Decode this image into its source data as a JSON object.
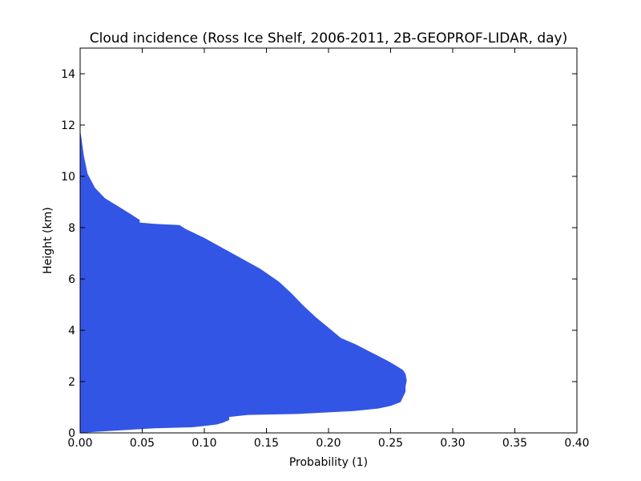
{
  "chart_data": {
    "type": "area",
    "title": "Cloud incidence (Ross Ice Shelf, 2006-2011, 2B-GEOPROF-LIDAR, day)",
    "xlabel": "Probability (1)",
    "ylabel": "Height (km)",
    "xlim": [
      0.0,
      0.4
    ],
    "ylim": [
      0,
      15
    ],
    "xticks": [
      "0.00",
      "0.05",
      "0.10",
      "0.15",
      "0.20",
      "0.25",
      "0.30",
      "0.35",
      "0.40"
    ],
    "yticks": [
      "0",
      "2",
      "4",
      "6",
      "8",
      "10",
      "12",
      "14"
    ],
    "grid": false,
    "fill_color": "#3355e6",
    "series": [
      {
        "x": [
          0.0,
          0.025,
          0.06,
          0.09,
          0.1,
          0.11,
          0.115,
          0.12,
          0.12,
          0.135,
          0.175,
          0.22,
          0.24,
          0.25,
          0.258,
          0.26,
          0.262,
          0.262,
          0.263,
          0.262,
          0.26,
          0.255,
          0.248,
          0.24,
          0.232,
          0.222,
          0.21,
          0.2,
          0.19,
          0.18,
          0.17,
          0.16,
          0.145,
          0.13,
          0.115,
          0.1,
          0.085,
          0.08,
          0.06,
          0.048,
          0.048,
          0.04,
          0.03,
          0.02,
          0.012,
          0.006,
          0.003,
          0.001,
          0.0
        ],
        "y": [
          0.0,
          0.08,
          0.18,
          0.22,
          0.27,
          0.33,
          0.4,
          0.5,
          0.62,
          0.7,
          0.74,
          0.85,
          0.95,
          1.05,
          1.2,
          1.4,
          1.6,
          1.8,
          2.05,
          2.3,
          2.45,
          2.6,
          2.8,
          3.0,
          3.2,
          3.45,
          3.7,
          4.1,
          4.5,
          4.95,
          5.45,
          5.9,
          6.4,
          6.8,
          7.2,
          7.6,
          7.95,
          8.1,
          8.15,
          8.2,
          8.3,
          8.55,
          8.85,
          9.15,
          9.55,
          10.1,
          10.8,
          11.5,
          11.8
        ]
      }
    ]
  }
}
